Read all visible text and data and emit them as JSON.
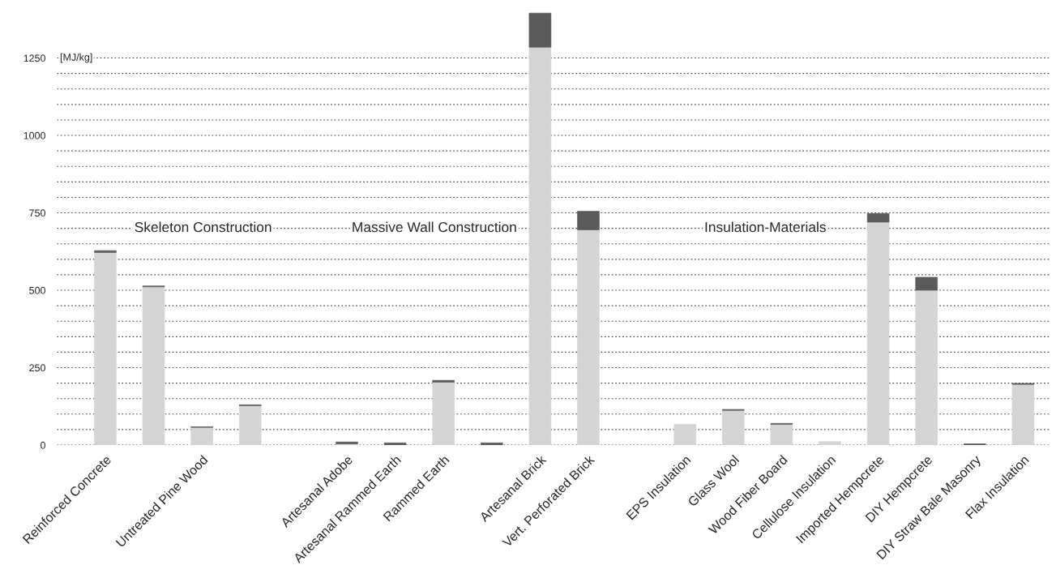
{
  "chart_data": {
    "type": "bar",
    "stacked": true,
    "ylabel": "[MJ/kg]",
    "categories": [
      "Reinforced Concrete",
      null,
      "Untreated Pine Wood",
      null,
      null,
      "Artesanal Adobe",
      "Artesanal Rammed Earth",
      "Rammed Earth",
      null,
      "Artesanal Brick",
      "Vert. Perforated Brick",
      null,
      "EPS Insulation",
      "Glass Wool",
      "Wood Fiber Board",
      "Cellulose Insulation",
      "Imported Hempcrete",
      "DIY Hempcrete",
      "DIY Straw Bale Masonry",
      "Flax Insulation"
    ],
    "series": [
      {
        "color": "#d4d4d4",
        "values": [
          622,
          511,
          57,
          127,
          null,
          4,
          null,
          203,
          0,
          1285,
          695,
          null,
          67,
          112,
          67,
          11,
          720,
          500,
          null,
          196
        ]
      },
      {
        "color": "#5a5a5a",
        "values": [
          6,
          3,
          2,
          3,
          null,
          6,
          7,
          6,
          7,
          110,
          60,
          null,
          0,
          3,
          3,
          0,
          28,
          42,
          4,
          3
        ]
      }
    ],
    "ylim": [
      0,
      1400
    ],
    "yticks": [
      0,
      {
        "value": 50,
        "label": null
      },
      {
        "value": 100,
        "label": null
      },
      {
        "value": 150,
        "label": null
      },
      {
        "value": 200,
        "label": null
      },
      250,
      {
        "value": 300,
        "label": null
      },
      {
        "value": 350,
        "label": null
      },
      {
        "value": 400,
        "label": null
      },
      {
        "value": 450,
        "label": null
      },
      500,
      {
        "value": 550,
        "label": null
      },
      {
        "value": 600,
        "label": null
      },
      {
        "value": 650,
        "label": null
      },
      {
        "value": 700,
        "label": null
      },
      750,
      {
        "value": 800,
        "label": null
      },
      {
        "value": 850,
        "label": null
      },
      {
        "value": 900,
        "label": null
      },
      {
        "value": 950,
        "label": null
      },
      1000,
      {
        "value": 1050,
        "label": null
      },
      {
        "value": 1100,
        "label": null
      },
      {
        "value": 1150,
        "label": null
      },
      {
        "value": 1200,
        "label": null
      },
      1250
    ],
    "grid": "y",
    "annotations": [
      "Skeleton Construction",
      "Massive Wall Construction",
      "Insulation-Materials"
    ]
  }
}
